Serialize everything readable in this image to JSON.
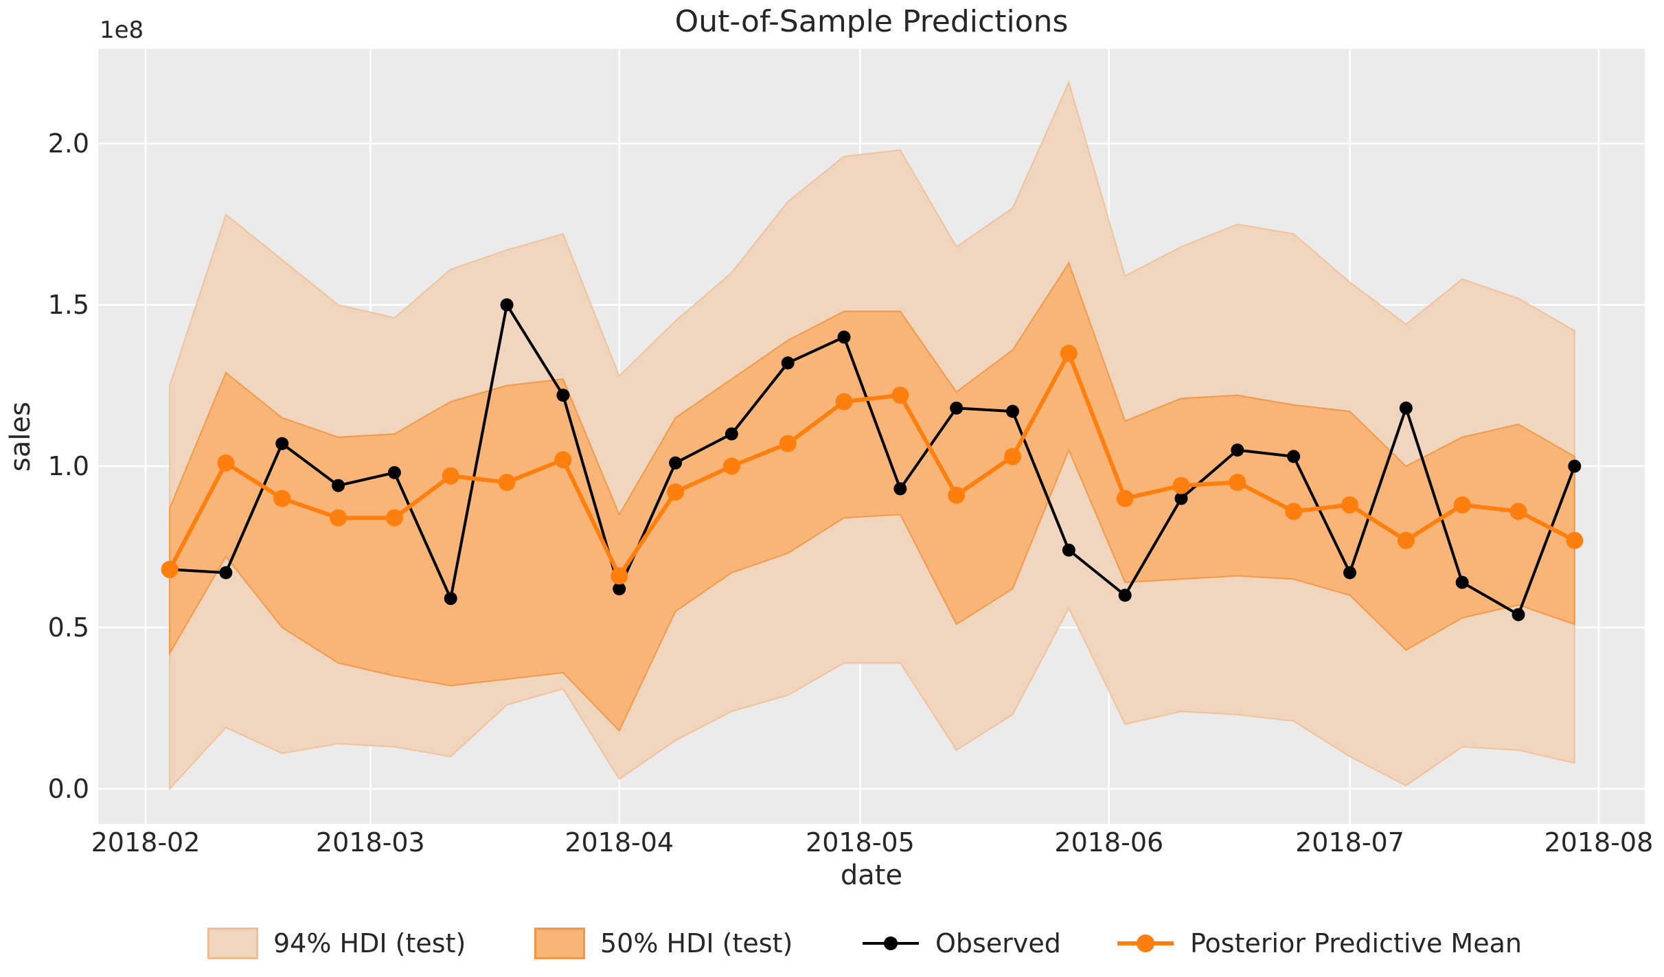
{
  "chart_data": {
    "type": "line",
    "title": "Out-of-Sample Predictions",
    "xlabel": "date",
    "ylabel": "sales",
    "y_offset_factor": "1e8",
    "y_unit": "1e8",
    "grid": true,
    "legend_position": "bottom",
    "ylim": [
      -0.11,
      2.3
    ],
    "yticks": [
      0.0,
      0.5,
      1.0,
      1.5,
      2.0
    ],
    "xticks": [
      "2018-02",
      "2018-03",
      "2018-04",
      "2018-05",
      "2018-06",
      "2018-07",
      "2018-08"
    ],
    "x": [
      "2018-02-04",
      "2018-02-11",
      "2018-02-18",
      "2018-02-25",
      "2018-03-04",
      "2018-03-11",
      "2018-03-18",
      "2018-03-25",
      "2018-04-01",
      "2018-04-08",
      "2018-04-15",
      "2018-04-22",
      "2018-04-29",
      "2018-05-06",
      "2018-05-13",
      "2018-05-20",
      "2018-05-27",
      "2018-06-03",
      "2018-06-10",
      "2018-06-17",
      "2018-06-24",
      "2018-07-01",
      "2018-07-08",
      "2018-07-15",
      "2018-07-22",
      "2018-07-29"
    ],
    "series": [
      {
        "name": "Observed",
        "values": [
          0.68,
          0.67,
          1.07,
          0.94,
          0.98,
          0.59,
          1.5,
          1.22,
          0.62,
          1.01,
          1.1,
          1.32,
          1.4,
          0.93,
          1.18,
          1.17,
          0.74,
          0.6,
          0.9,
          1.05,
          1.03,
          0.67,
          1.18,
          0.64,
          0.54,
          1.0
        ]
      },
      {
        "name": "Posterior Predictive Mean",
        "values": [
          0.68,
          1.01,
          0.9,
          0.84,
          0.84,
          0.97,
          0.95,
          1.02,
          0.66,
          0.92,
          1.0,
          1.07,
          1.2,
          1.22,
          0.91,
          1.03,
          1.35,
          0.9,
          0.94,
          0.95,
          0.86,
          0.88,
          0.77,
          0.88,
          0.86,
          0.77
        ]
      }
    ],
    "bands": [
      {
        "name": "94% HDI (test)",
        "lower": [
          0.0,
          0.19,
          0.11,
          0.14,
          0.13,
          0.1,
          0.26,
          0.31,
          0.03,
          0.15,
          0.24,
          0.29,
          0.39,
          0.39,
          0.12,
          0.23,
          0.56,
          0.2,
          0.24,
          0.23,
          0.21,
          0.1,
          0.01,
          0.13,
          0.12,
          0.08
        ],
        "upper": [
          1.25,
          1.78,
          1.64,
          1.5,
          1.46,
          1.61,
          1.67,
          1.72,
          1.28,
          1.45,
          1.6,
          1.82,
          1.96,
          1.98,
          1.68,
          1.8,
          2.19,
          1.59,
          1.68,
          1.75,
          1.72,
          1.57,
          1.44,
          1.58,
          1.52,
          1.42
        ]
      },
      {
        "name": "50% HDI (test)",
        "lower": [
          0.42,
          0.72,
          0.5,
          0.39,
          0.35,
          0.32,
          0.34,
          0.36,
          0.18,
          0.55,
          0.67,
          0.73,
          0.84,
          0.85,
          0.51,
          0.62,
          1.05,
          0.64,
          0.65,
          0.66,
          0.65,
          0.6,
          0.43,
          0.53,
          0.57,
          0.51
        ],
        "upper": [
          0.87,
          1.29,
          1.15,
          1.09,
          1.1,
          1.2,
          1.25,
          1.27,
          0.85,
          1.15,
          1.27,
          1.39,
          1.48,
          1.48,
          1.23,
          1.36,
          1.63,
          1.14,
          1.21,
          1.22,
          1.19,
          1.17,
          1.0,
          1.09,
          1.13,
          1.03
        ]
      }
    ],
    "colors": {
      "observed": "#000000",
      "mean": "#ff7f0e",
      "band_94_fill": "#f0d6bf",
      "band_94_edge": "rgba(244,157,84,0.45)",
      "band_50_fill": "#f8b577",
      "band_50_edge": "rgba(242,139,47,0.75)",
      "plot_bg": "#ebebeb",
      "grid": "#ffffff",
      "text": "#262626"
    }
  }
}
